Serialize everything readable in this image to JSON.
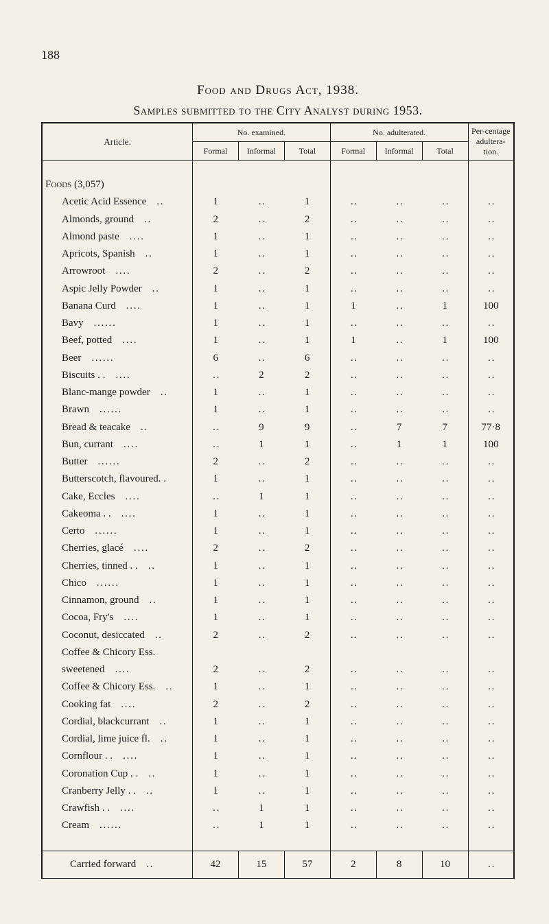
{
  "page_number": "188",
  "heading": {
    "act": "Food and Drugs Act, 1938.",
    "subtitle": "Samples submitted to the City Analyst during 1953."
  },
  "table": {
    "header": {
      "article": "Article.",
      "examined": "No. examined.",
      "adulterated": "No. adulterated.",
      "formal": "Formal",
      "informal": "Informal",
      "total": "Total",
      "percentage": "Per-centage adultera-tion."
    },
    "section_label": "Foods (3,057)",
    "ellipsis": ". .",
    "rows": [
      {
        "article": "Acetic Acid Essence",
        "trail": ". .",
        "cells": [
          "1",
          "",
          "1",
          "",
          "",
          "",
          ""
        ],
        "dots": [
          false,
          true,
          false,
          true,
          true,
          true,
          true
        ]
      },
      {
        "article": "Almonds, ground",
        "trail": ". .",
        "cells": [
          "2",
          "",
          "2",
          "",
          "",
          "",
          ""
        ],
        "dots": [
          false,
          true,
          false,
          true,
          true,
          true,
          true
        ]
      },
      {
        "article": "Almond paste",
        "trail": ". .   . .",
        "cells": [
          "1",
          "",
          "1",
          "",
          "",
          "",
          ""
        ],
        "dots": [
          false,
          true,
          false,
          true,
          true,
          true,
          true
        ]
      },
      {
        "article": "Apricots, Spanish",
        "trail": ". .",
        "cells": [
          "1",
          "",
          "1",
          "",
          "",
          "",
          ""
        ],
        "dots": [
          false,
          true,
          false,
          true,
          true,
          true,
          true
        ]
      },
      {
        "article": "Arrowroot",
        "trail": ". .   . .",
        "cells": [
          "2",
          "",
          "2",
          "",
          "",
          "",
          ""
        ],
        "dots": [
          false,
          true,
          false,
          true,
          true,
          true,
          true
        ]
      },
      {
        "article": "Aspic Jelly Powder",
        "trail": ". .",
        "cells": [
          "1",
          "",
          "1",
          "",
          "",
          "",
          ""
        ],
        "dots": [
          false,
          true,
          false,
          true,
          true,
          true,
          true
        ]
      },
      {
        "article": "Banana Curd",
        "trail": ". .   . .",
        "cells": [
          "1",
          "",
          "1",
          "1",
          "",
          "1",
          "100"
        ],
        "dots": [
          false,
          true,
          false,
          false,
          true,
          false,
          false
        ]
      },
      {
        "article": "Bavy",
        "trail": ". .   . .   . .",
        "cells": [
          "1",
          "",
          "1",
          "",
          "",
          "",
          ""
        ],
        "dots": [
          false,
          true,
          false,
          true,
          true,
          true,
          true
        ]
      },
      {
        "article": "Beef, potted",
        "trail": ". .   . .",
        "cells": [
          "1",
          "",
          "1",
          "1",
          "",
          "1",
          "100"
        ],
        "dots": [
          false,
          true,
          false,
          false,
          true,
          false,
          false
        ]
      },
      {
        "article": "Beer",
        "trail": ". .   . .   . .",
        "cells": [
          "6",
          "",
          "6",
          "",
          "",
          "",
          ""
        ],
        "dots": [
          false,
          true,
          false,
          true,
          true,
          true,
          true
        ]
      },
      {
        "article": "Biscuits . .",
        "trail": ". .   . .",
        "cells": [
          "",
          "2",
          "2",
          "",
          "",
          "",
          ""
        ],
        "dots": [
          true,
          false,
          false,
          true,
          true,
          true,
          true
        ]
      },
      {
        "article": "Blanc-mange powder",
        "trail": ". .",
        "cells": [
          "1",
          "",
          "1",
          "",
          "",
          "",
          ""
        ],
        "dots": [
          false,
          true,
          false,
          true,
          true,
          true,
          true
        ]
      },
      {
        "article": "Brawn",
        "trail": ". .   . .   . .",
        "cells": [
          "1",
          "",
          "1",
          "",
          "",
          "",
          ""
        ],
        "dots": [
          false,
          true,
          false,
          true,
          true,
          true,
          true
        ]
      },
      {
        "article": "Bread & teacake",
        "trail": ". .",
        "cells": [
          "",
          "9",
          "9",
          "",
          "7",
          "7",
          "77·8"
        ],
        "dots": [
          true,
          false,
          false,
          true,
          false,
          false,
          false
        ]
      },
      {
        "article": "Bun, currant",
        "trail": ". .   . .",
        "cells": [
          "",
          "1",
          "1",
          "",
          "1",
          "1",
          "100"
        ],
        "dots": [
          true,
          false,
          false,
          true,
          false,
          false,
          false
        ]
      },
      {
        "article": "Butter",
        "trail": ". .   . .   . .",
        "cells": [
          "2",
          "",
          "2",
          "",
          "",
          "",
          ""
        ],
        "dots": [
          false,
          true,
          false,
          true,
          true,
          true,
          true
        ]
      },
      {
        "article": "Butterscotch, flavoured. .",
        "trail": "",
        "cells": [
          "1",
          "",
          "1",
          "",
          "",
          "",
          ""
        ],
        "dots": [
          false,
          true,
          false,
          true,
          true,
          true,
          true
        ]
      },
      {
        "article": "Cake, Eccles",
        "trail": ". .   . .",
        "cells": [
          "",
          "1",
          "1",
          "",
          "",
          "",
          ""
        ],
        "dots": [
          true,
          false,
          false,
          true,
          true,
          true,
          true
        ]
      },
      {
        "article": "Cakeoma . .",
        "trail": ". .   . .",
        "cells": [
          "1",
          "",
          "1",
          "",
          "",
          "",
          ""
        ],
        "dots": [
          false,
          true,
          false,
          true,
          true,
          true,
          true
        ]
      },
      {
        "article": "Certo",
        "trail": ". .   . .   . .",
        "cells": [
          "1",
          "",
          "1",
          "",
          "",
          "",
          ""
        ],
        "dots": [
          false,
          true,
          false,
          true,
          true,
          true,
          true
        ]
      },
      {
        "article": "Cherries, glacé",
        "trail": ". .   . .",
        "cells": [
          "2",
          "",
          "2",
          "",
          "",
          "",
          ""
        ],
        "dots": [
          false,
          true,
          false,
          true,
          true,
          true,
          true
        ]
      },
      {
        "article": "Cherries, tinned . .",
        "trail": ". .",
        "cells": [
          "1",
          "",
          "1",
          "",
          "",
          "",
          ""
        ],
        "dots": [
          false,
          true,
          false,
          true,
          true,
          true,
          true
        ]
      },
      {
        "article": "Chico",
        "trail": ". .   . .   . .",
        "cells": [
          "1",
          "",
          "1",
          "",
          "",
          "",
          ""
        ],
        "dots": [
          false,
          true,
          false,
          true,
          true,
          true,
          true
        ]
      },
      {
        "article": "Cinnamon, ground",
        "trail": ". .",
        "cells": [
          "1",
          "",
          "1",
          "",
          "",
          "",
          ""
        ],
        "dots": [
          false,
          true,
          false,
          true,
          true,
          true,
          true
        ]
      },
      {
        "article": "Cocoa, Fry's",
        "trail": ". .   . .",
        "cells": [
          "1",
          "",
          "1",
          "",
          "",
          "",
          ""
        ],
        "dots": [
          false,
          true,
          false,
          true,
          true,
          true,
          true
        ]
      },
      {
        "article": "Coconut, desiccated",
        "trail": ". .",
        "cells": [
          "2",
          "",
          "2",
          "",
          "",
          "",
          ""
        ],
        "dots": [
          false,
          true,
          false,
          true,
          true,
          true,
          true
        ]
      },
      {
        "article": "Coffee & Chicory Ess.",
        "trail": "",
        "cells": [
          "",
          "",
          "",
          "",
          "",
          "",
          ""
        ],
        "dots": [
          false,
          false,
          false,
          false,
          false,
          false,
          false
        ]
      },
      {
        "article": "  sweetened",
        "trail": ". .   . .",
        "cells": [
          "2",
          "",
          "2",
          "",
          "",
          "",
          ""
        ],
        "dots": [
          false,
          true,
          false,
          true,
          true,
          true,
          true
        ]
      },
      {
        "article": "Coffee & Chicory Ess.",
        "trail": ". .",
        "cells": [
          "1",
          "",
          "1",
          "",
          "",
          "",
          ""
        ],
        "dots": [
          false,
          true,
          false,
          true,
          true,
          true,
          true
        ]
      },
      {
        "article": "Cooking fat",
        "trail": ". .   . .",
        "cells": [
          "2",
          "",
          "2",
          "",
          "",
          "",
          ""
        ],
        "dots": [
          false,
          true,
          false,
          true,
          true,
          true,
          true
        ]
      },
      {
        "article": "Cordial, blackcurrant",
        "trail": ". .",
        "cells": [
          "1",
          "",
          "1",
          "",
          "",
          "",
          ""
        ],
        "dots": [
          false,
          true,
          false,
          true,
          true,
          true,
          true
        ]
      },
      {
        "article": "Cordial, lime juice fl.",
        "trail": ". .",
        "cells": [
          "1",
          "",
          "1",
          "",
          "",
          "",
          ""
        ],
        "dots": [
          false,
          true,
          false,
          true,
          true,
          true,
          true
        ]
      },
      {
        "article": "Cornflour . .",
        "trail": ". .   . .",
        "cells": [
          "1",
          "",
          "1",
          "",
          "",
          "",
          ""
        ],
        "dots": [
          false,
          true,
          false,
          true,
          true,
          true,
          true
        ]
      },
      {
        "article": "Coronation Cup . .",
        "trail": ". .",
        "cells": [
          "1",
          "",
          "1",
          "",
          "",
          "",
          ""
        ],
        "dots": [
          false,
          true,
          false,
          true,
          true,
          true,
          true
        ]
      },
      {
        "article": "Cranberry Jelly . .",
        "trail": ". .",
        "cells": [
          "1",
          "",
          "1",
          "",
          "",
          "",
          ""
        ],
        "dots": [
          false,
          true,
          false,
          true,
          true,
          true,
          true
        ]
      },
      {
        "article": "Crawfish . .",
        "trail": ". .   . .",
        "cells": [
          "",
          "1",
          "1",
          "",
          "",
          "",
          ""
        ],
        "dots": [
          true,
          false,
          false,
          true,
          true,
          true,
          true
        ]
      },
      {
        "article": "Cream",
        "trail": ". .   . .   . .",
        "cells": [
          "",
          "1",
          "1",
          "",
          "",
          "",
          ""
        ],
        "dots": [
          true,
          false,
          false,
          true,
          true,
          true,
          true
        ]
      }
    ],
    "carried_forward": {
      "label": "Carried forward",
      "trail": ". .",
      "cells": [
        "42",
        "15",
        "57",
        "2",
        "8",
        "10",
        ""
      ],
      "dots": [
        false,
        false,
        false,
        false,
        false,
        false,
        true
      ]
    },
    "col_widths": [
      "210px",
      "64px",
      "64px",
      "64px",
      "64px",
      "64px",
      "64px",
      "64px"
    ],
    "styling": {
      "background": "#f4f0e8",
      "text_color": "#1a1a1a",
      "outer_border_width": 2,
      "inner_border_width": 1,
      "body_fontsize": 15,
      "header_fontsize": 12,
      "title_fontsize": 19
    }
  }
}
